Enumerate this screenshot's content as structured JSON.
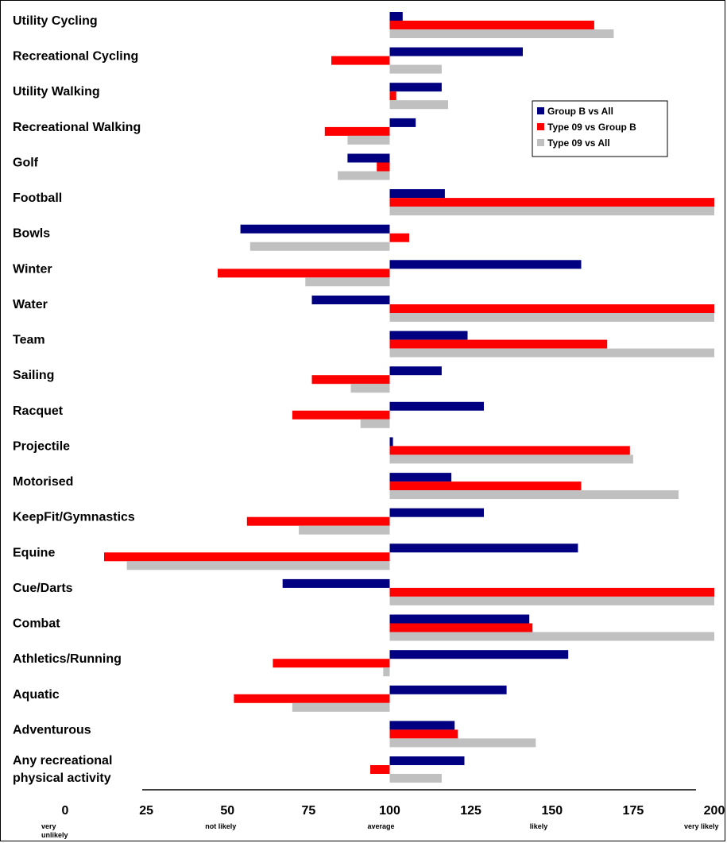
{
  "chart_data": {
    "type": "bar",
    "orientation": "horizontal",
    "baseline": 100,
    "xlim": [
      0,
      200
    ],
    "x_ticks": [
      0,
      25,
      50,
      75,
      100,
      125,
      150,
      175,
      200
    ],
    "x_sub_labels": [
      {
        "value": 0,
        "text": "very"
      },
      {
        "value": 0,
        "text": "unlikely"
      },
      {
        "value": 50,
        "text": "not likely"
      },
      {
        "value": 100,
        "text": "average"
      },
      {
        "value": 150,
        "text": "likely"
      },
      {
        "value": 200,
        "text": "very likely"
      }
    ],
    "categories": [
      [
        "Utility Cycling"
      ],
      [
        "Recreational Cycling"
      ],
      [
        "Utility Walking"
      ],
      [
        "Recreational Walking"
      ],
      [
        "Golf"
      ],
      [
        "Football"
      ],
      [
        "Bowls"
      ],
      [
        "Winter"
      ],
      [
        "Water"
      ],
      [
        "Team"
      ],
      [
        "Sailing"
      ],
      [
        "Racquet"
      ],
      [
        "Projectile"
      ],
      [
        "Motorised"
      ],
      [
        "KeepFit/Gymnastics"
      ],
      [
        "Equine"
      ],
      [
        "Cue/Darts"
      ],
      [
        "Combat"
      ],
      [
        "Athletics/Running"
      ],
      [
        "Aquatic"
      ],
      [
        "Adventurous"
      ],
      [
        "Any recreational",
        "physical activity"
      ]
    ],
    "series": [
      {
        "name": "Group B vs All",
        "color": "#000080",
        "values": [
          104,
          141,
          116,
          108,
          87,
          117,
          54,
          159,
          76,
          124,
          116,
          129,
          101,
          119,
          129,
          158,
          67,
          143,
          155,
          136,
          120,
          123
        ]
      },
      {
        "name": "Type 09 vs Group B",
        "color": "#ff0000",
        "values": [
          163,
          82,
          102,
          80,
          96,
          200,
          106,
          47,
          200,
          167,
          76,
          70,
          174,
          159,
          56,
          12,
          200,
          144,
          64,
          52,
          121,
          94
        ]
      },
      {
        "name": "Type 09 vs All",
        "color": "#c0c0c0",
        "values": [
          169,
          116,
          118,
          87,
          84,
          200,
          57,
          74,
          200,
          200,
          88,
          91,
          175,
          189,
          72,
          19,
          200,
          200,
          98,
          70,
          145,
          116
        ]
      }
    ],
    "legend_position": "top-right",
    "grid": false
  }
}
